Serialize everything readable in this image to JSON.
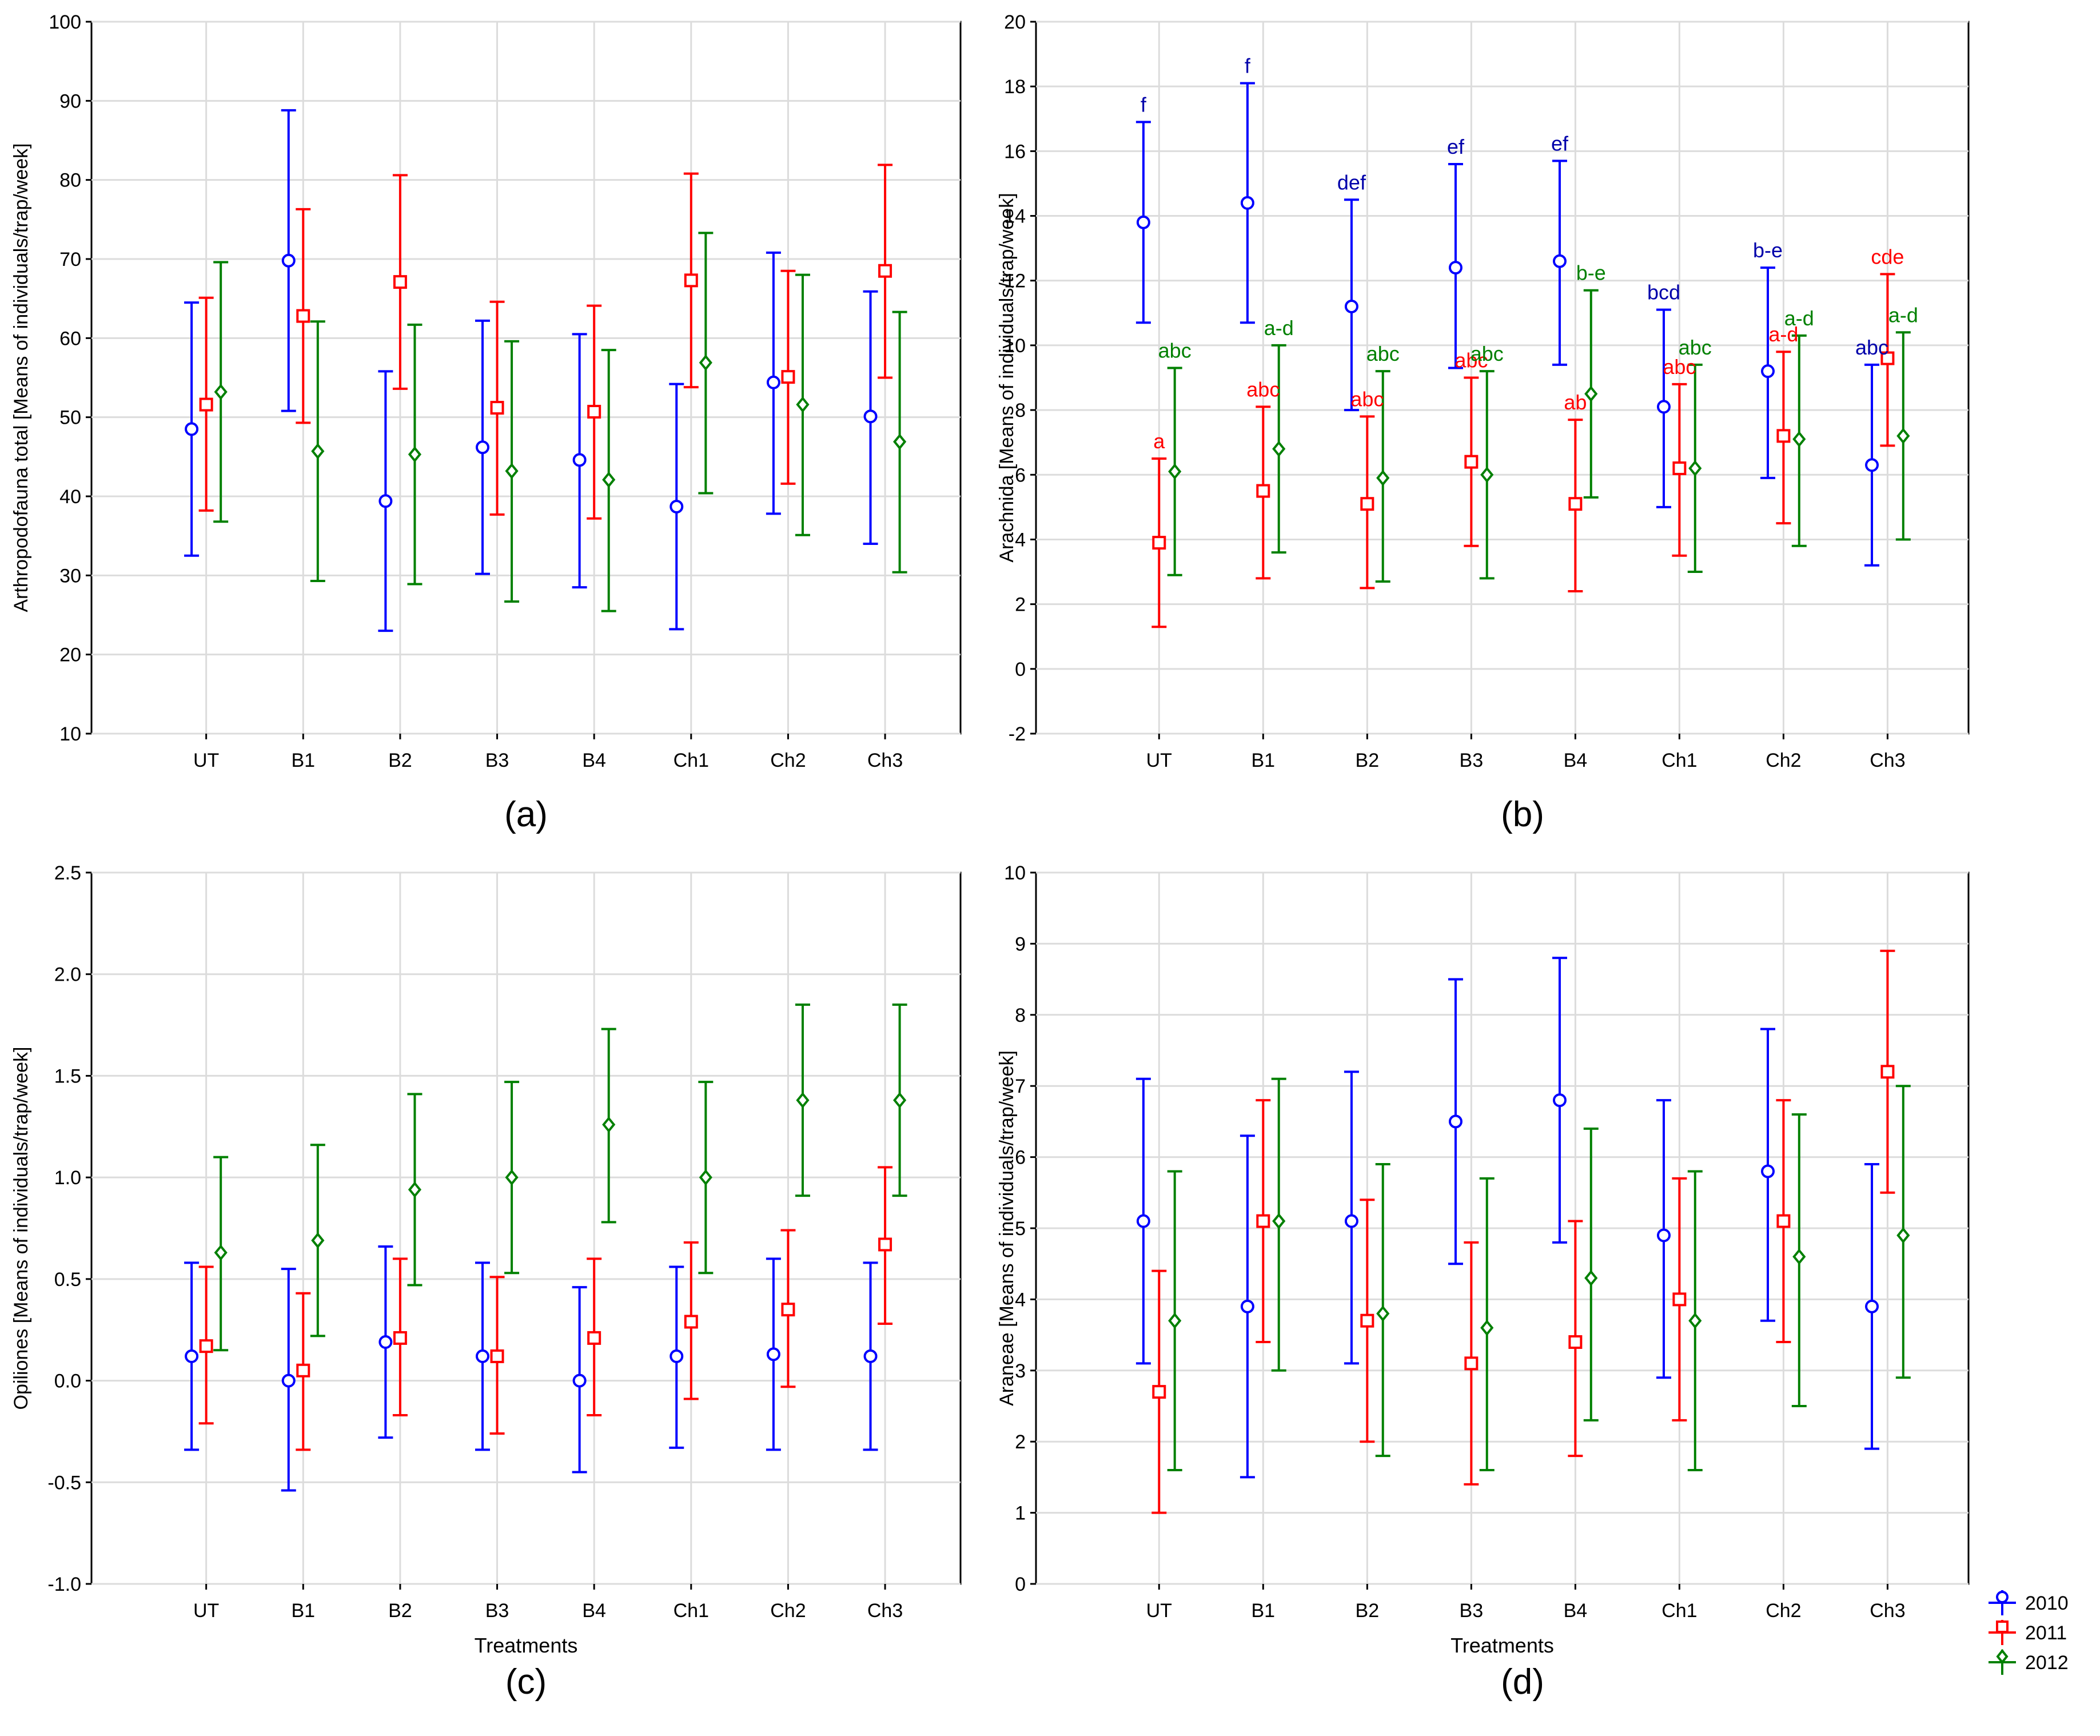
{
  "legend": {
    "entries": [
      {
        "label": "2010",
        "color": "#0000ff",
        "marker": "circle"
      },
      {
        "label": "2011",
        "color": "#ff0000",
        "marker": "square"
      },
      {
        "label": "2012",
        "color": "#008000",
        "marker": "diamond"
      }
    ],
    "placement": "bottom-right"
  },
  "chart_data": [
    {
      "type": "errorbar",
      "panel_label": "(a)",
      "title": "",
      "xlabel": "",
      "ylabel": "Arthropodofauna total [Means of individuals/trap/week]",
      "categories": [
        "UT",
        "B1",
        "B2",
        "B3",
        "B4",
        "Ch1",
        "Ch2",
        "Ch3"
      ],
      "ylim": [
        10,
        100
      ],
      "yticks": [
        10,
        20,
        30,
        40,
        50,
        60,
        70,
        80,
        90,
        100
      ],
      "ytick_labels": [
        "10",
        "20",
        "30",
        "40",
        "50",
        "60",
        "70",
        "80",
        "90",
        "100"
      ],
      "grid": true,
      "series": [
        {
          "name": "2010",
          "color": "#0000ff",
          "marker": "circle",
          "values": [
            48.5,
            69.8,
            39.4,
            46.2,
            44.6,
            38.7,
            54.4,
            50.1
          ],
          "lower": [
            32.5,
            50.8,
            23.0,
            30.2,
            28.5,
            23.2,
            37.8,
            34.0
          ],
          "upper": [
            64.5,
            88.8,
            55.8,
            62.2,
            60.5,
            54.2,
            70.8,
            65.9
          ]
        },
        {
          "name": "2011",
          "color": "#ff0000",
          "marker": "square",
          "values": [
            51.6,
            62.8,
            67.1,
            51.2,
            50.7,
            67.3,
            55.1,
            68.5
          ],
          "lower": [
            38.2,
            49.3,
            53.6,
            37.7,
            37.2,
            53.8,
            41.6,
            55.0
          ],
          "upper": [
            65.1,
            76.3,
            80.6,
            64.6,
            64.1,
            80.8,
            68.5,
            81.9
          ]
        },
        {
          "name": "2012",
          "color": "#008000",
          "marker": "diamond",
          "values": [
            53.2,
            45.7,
            45.3,
            43.2,
            42.1,
            56.9,
            51.6,
            46.9
          ],
          "lower": [
            36.8,
            29.3,
            28.9,
            26.7,
            25.5,
            40.4,
            35.1,
            30.4
          ],
          "upper": [
            69.6,
            62.1,
            61.7,
            59.6,
            58.5,
            73.3,
            68.0,
            63.3
          ]
        }
      ],
      "annotations": []
    },
    {
      "type": "errorbar",
      "panel_label": "(b)",
      "title": "",
      "xlabel": "",
      "ylabel": "Arachnida [Means of individuals/trap/week]",
      "categories": [
        "UT",
        "B1",
        "B2",
        "B3",
        "B4",
        "Ch1",
        "Ch2",
        "Ch3"
      ],
      "ylim": [
        -2,
        20
      ],
      "yticks": [
        -2,
        0,
        2,
        4,
        6,
        8,
        10,
        12,
        14,
        16,
        18,
        20
      ],
      "ytick_labels": [
        "-2",
        "0",
        "2",
        "4",
        "6",
        "8",
        "10",
        "12",
        "14",
        "16",
        "18",
        "20"
      ],
      "grid": true,
      "series": [
        {
          "name": "2010",
          "color": "#0000ff",
          "marker": "circle",
          "values": [
            13.8,
            14.4,
            11.2,
            12.4,
            12.6,
            8.1,
            9.2,
            6.3
          ],
          "lower": [
            10.7,
            10.7,
            8.0,
            9.3,
            9.4,
            5.0,
            5.9,
            3.2
          ],
          "upper": [
            16.9,
            18.1,
            14.5,
            15.6,
            15.7,
            11.1,
            12.4,
            9.4
          ]
        },
        {
          "name": "2011",
          "color": "#ff0000",
          "marker": "square",
          "values": [
            3.9,
            5.5,
            5.1,
            6.4,
            5.1,
            6.2,
            7.2,
            9.6
          ],
          "lower": [
            1.3,
            2.8,
            2.5,
            3.8,
            2.4,
            3.5,
            4.5,
            6.9
          ],
          "upper": [
            6.5,
            8.1,
            7.8,
            9.0,
            7.7,
            8.8,
            9.8,
            12.2
          ]
        },
        {
          "name": "2012",
          "color": "#008000",
          "marker": "diamond",
          "values": [
            6.1,
            6.8,
            5.9,
            6.0,
            8.5,
            6.2,
            7.1,
            7.2
          ],
          "lower": [
            2.9,
            3.6,
            2.7,
            2.8,
            5.3,
            3.0,
            3.8,
            4.0
          ],
          "upper": [
            9.3,
            10.0,
            9.2,
            9.2,
            11.7,
            9.4,
            10.3,
            10.4
          ]
        }
      ],
      "annotations": [
        {
          "category": "UT",
          "series": "2010",
          "text": "f"
        },
        {
          "category": "B1",
          "series": "2010",
          "text": "f"
        },
        {
          "category": "B2",
          "series": "2010",
          "text": "def"
        },
        {
          "category": "B3",
          "series": "2010",
          "text": "ef"
        },
        {
          "category": "B4",
          "series": "2010",
          "text": "ef"
        },
        {
          "category": "Ch1",
          "series": "2010",
          "text": "bcd"
        },
        {
          "category": "Ch2",
          "series": "2010",
          "text": "b-e"
        },
        {
          "category": "Ch3",
          "series": "2010",
          "text": "abc"
        },
        {
          "category": "UT",
          "series": "2011",
          "text": "a"
        },
        {
          "category": "B1",
          "series": "2011",
          "text": "abc"
        },
        {
          "category": "B2",
          "series": "2011",
          "text": "abc"
        },
        {
          "category": "B3",
          "series": "2011",
          "text": "abc"
        },
        {
          "category": "B4",
          "series": "2011",
          "text": "ab"
        },
        {
          "category": "Ch1",
          "series": "2011",
          "text": "abc"
        },
        {
          "category": "Ch2",
          "series": "2011",
          "text": "a-d"
        },
        {
          "category": "Ch3",
          "series": "2011",
          "text": "cde"
        },
        {
          "category": "UT",
          "series": "2012",
          "text": "abc"
        },
        {
          "category": "B1",
          "series": "2012",
          "text": "a-d"
        },
        {
          "category": "B2",
          "series": "2012",
          "text": "abc"
        },
        {
          "category": "B3",
          "series": "2012",
          "text": "abc"
        },
        {
          "category": "B4",
          "series": "2012",
          "text": "b-e"
        },
        {
          "category": "Ch1",
          "series": "2012",
          "text": "abc"
        },
        {
          "category": "Ch2",
          "series": "2012",
          "text": "a-d"
        },
        {
          "category": "Ch3",
          "series": "2012",
          "text": "a-d"
        }
      ]
    },
    {
      "type": "errorbar",
      "panel_label": "(c)",
      "title": "",
      "xlabel": "Treatments",
      "ylabel": "Opiliones [Means of individuals/trap/week]",
      "categories": [
        "UT",
        "B1",
        "B2",
        "B3",
        "B4",
        "Ch1",
        "Ch2",
        "Ch3"
      ],
      "ylim": [
        -1.0,
        2.5
      ],
      "yticks": [
        -1.0,
        -0.5,
        0.0,
        0.5,
        1.0,
        1.5,
        2.0,
        2.5
      ],
      "ytick_labels": [
        "-1.0",
        "-0.5",
        "0.0",
        "0.5",
        "1.0",
        "1.5",
        "2.0",
        "2.5"
      ],
      "grid": true,
      "series": [
        {
          "name": "2010",
          "color": "#0000ff",
          "marker": "circle",
          "values": [
            0.12,
            0.0,
            0.19,
            0.12,
            0.0,
            0.12,
            0.13,
            0.12
          ],
          "lower": [
            -0.34,
            -0.54,
            -0.28,
            -0.34,
            -0.45,
            -0.33,
            -0.34,
            -0.34
          ],
          "upper": [
            0.58,
            0.55,
            0.66,
            0.58,
            0.46,
            0.56,
            0.6,
            0.58
          ]
        },
        {
          "name": "2011",
          "color": "#ff0000",
          "marker": "square",
          "values": [
            0.17,
            0.05,
            0.21,
            0.12,
            0.21,
            0.29,
            0.35,
            0.67
          ],
          "lower": [
            -0.21,
            -0.34,
            -0.17,
            -0.26,
            -0.17,
            -0.09,
            -0.03,
            0.28
          ],
          "upper": [
            0.56,
            0.43,
            0.6,
            0.51,
            0.6,
            0.68,
            0.74,
            1.05
          ]
        },
        {
          "name": "2012",
          "color": "#008000",
          "marker": "diamond",
          "values": [
            0.63,
            0.69,
            0.94,
            1.0,
            1.26,
            1.0,
            1.38,
            1.38
          ],
          "lower": [
            0.15,
            0.22,
            0.47,
            0.53,
            0.78,
            0.53,
            0.91,
            0.91
          ],
          "upper": [
            1.1,
            1.16,
            1.41,
            1.47,
            1.73,
            1.47,
            1.85,
            1.85
          ]
        }
      ],
      "annotations": []
    },
    {
      "type": "errorbar",
      "panel_label": "(d)",
      "title": "",
      "xlabel": "Treatments",
      "ylabel": "Araneae [Means of individuals/trap/week]",
      "categories": [
        "UT",
        "B1",
        "B2",
        "B3",
        "B4",
        "Ch1",
        "Ch2",
        "Ch3"
      ],
      "ylim": [
        0,
        10
      ],
      "yticks": [
        0,
        1,
        2,
        3,
        4,
        5,
        6,
        7,
        8,
        9,
        10
      ],
      "ytick_labels": [
        "0",
        "1",
        "2",
        "3",
        "4",
        "5",
        "6",
        "7",
        "8",
        "9",
        "10"
      ],
      "grid": true,
      "series": [
        {
          "name": "2010",
          "color": "#0000ff",
          "marker": "circle",
          "values": [
            5.1,
            3.9,
            5.1,
            6.5,
            6.8,
            4.9,
            5.8,
            3.9
          ],
          "lower": [
            3.1,
            1.5,
            3.1,
            4.5,
            4.8,
            2.9,
            3.7,
            1.9
          ],
          "upper": [
            7.1,
            6.3,
            7.2,
            8.5,
            8.8,
            6.8,
            7.8,
            5.9
          ]
        },
        {
          "name": "2011",
          "color": "#ff0000",
          "marker": "square",
          "values": [
            2.7,
            5.1,
            3.7,
            3.1,
            3.4,
            4.0,
            5.1,
            7.2
          ],
          "lower": [
            1.0,
            3.4,
            2.0,
            1.4,
            1.8,
            2.3,
            3.4,
            5.5
          ],
          "upper": [
            4.4,
            6.8,
            5.4,
            4.8,
            5.1,
            5.7,
            6.8,
            8.9
          ]
        },
        {
          "name": "2012",
          "color": "#008000",
          "marker": "diamond",
          "values": [
            3.7,
            5.1,
            3.8,
            3.6,
            4.3,
            3.7,
            4.6,
            4.9
          ],
          "lower": [
            1.6,
            3.0,
            1.8,
            1.6,
            2.3,
            1.6,
            2.5,
            2.9
          ],
          "upper": [
            5.8,
            7.1,
            5.9,
            5.7,
            6.4,
            5.8,
            6.6,
            7.0
          ]
        }
      ],
      "annotations": []
    }
  ]
}
